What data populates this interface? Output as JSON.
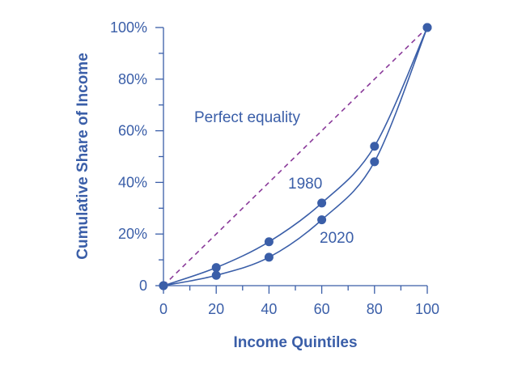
{
  "colors": {
    "axis": "#3a5ea8",
    "curve": "#3a5ea8",
    "equality": "#8a3a9a",
    "text": "#3a5ea8"
  },
  "chart_data": {
    "type": "line",
    "xlabel": "Income Quintiles",
    "ylabel": "Cumulative Share of Income",
    "xlim": [
      0,
      100
    ],
    "ylim": [
      0,
      100
    ],
    "x_ticks": [
      0,
      20,
      40,
      60,
      80,
      100
    ],
    "x_tick_labels": [
      "0",
      "20",
      "40",
      "60",
      "80",
      "100"
    ],
    "y_ticks": [
      0,
      20,
      40,
      60,
      80,
      100
    ],
    "y_tick_labels": [
      "0",
      "20%",
      "40%",
      "60%",
      "80%",
      "100%"
    ],
    "grid": false,
    "series": [
      {
        "name": "1980",
        "x": [
          0,
          20,
          40,
          60,
          80,
          100
        ],
        "y": [
          0,
          7,
          17,
          32,
          54,
          100
        ]
      },
      {
        "name": "2020",
        "x": [
          0,
          20,
          40,
          60,
          80,
          100
        ],
        "y": [
          0,
          4,
          11,
          25.5,
          48,
          100
        ]
      }
    ],
    "reference_line": {
      "label": "Perfect equality",
      "x": [
        0,
        100
      ],
      "y": [
        0,
        100
      ],
      "style": "dashed"
    }
  }
}
